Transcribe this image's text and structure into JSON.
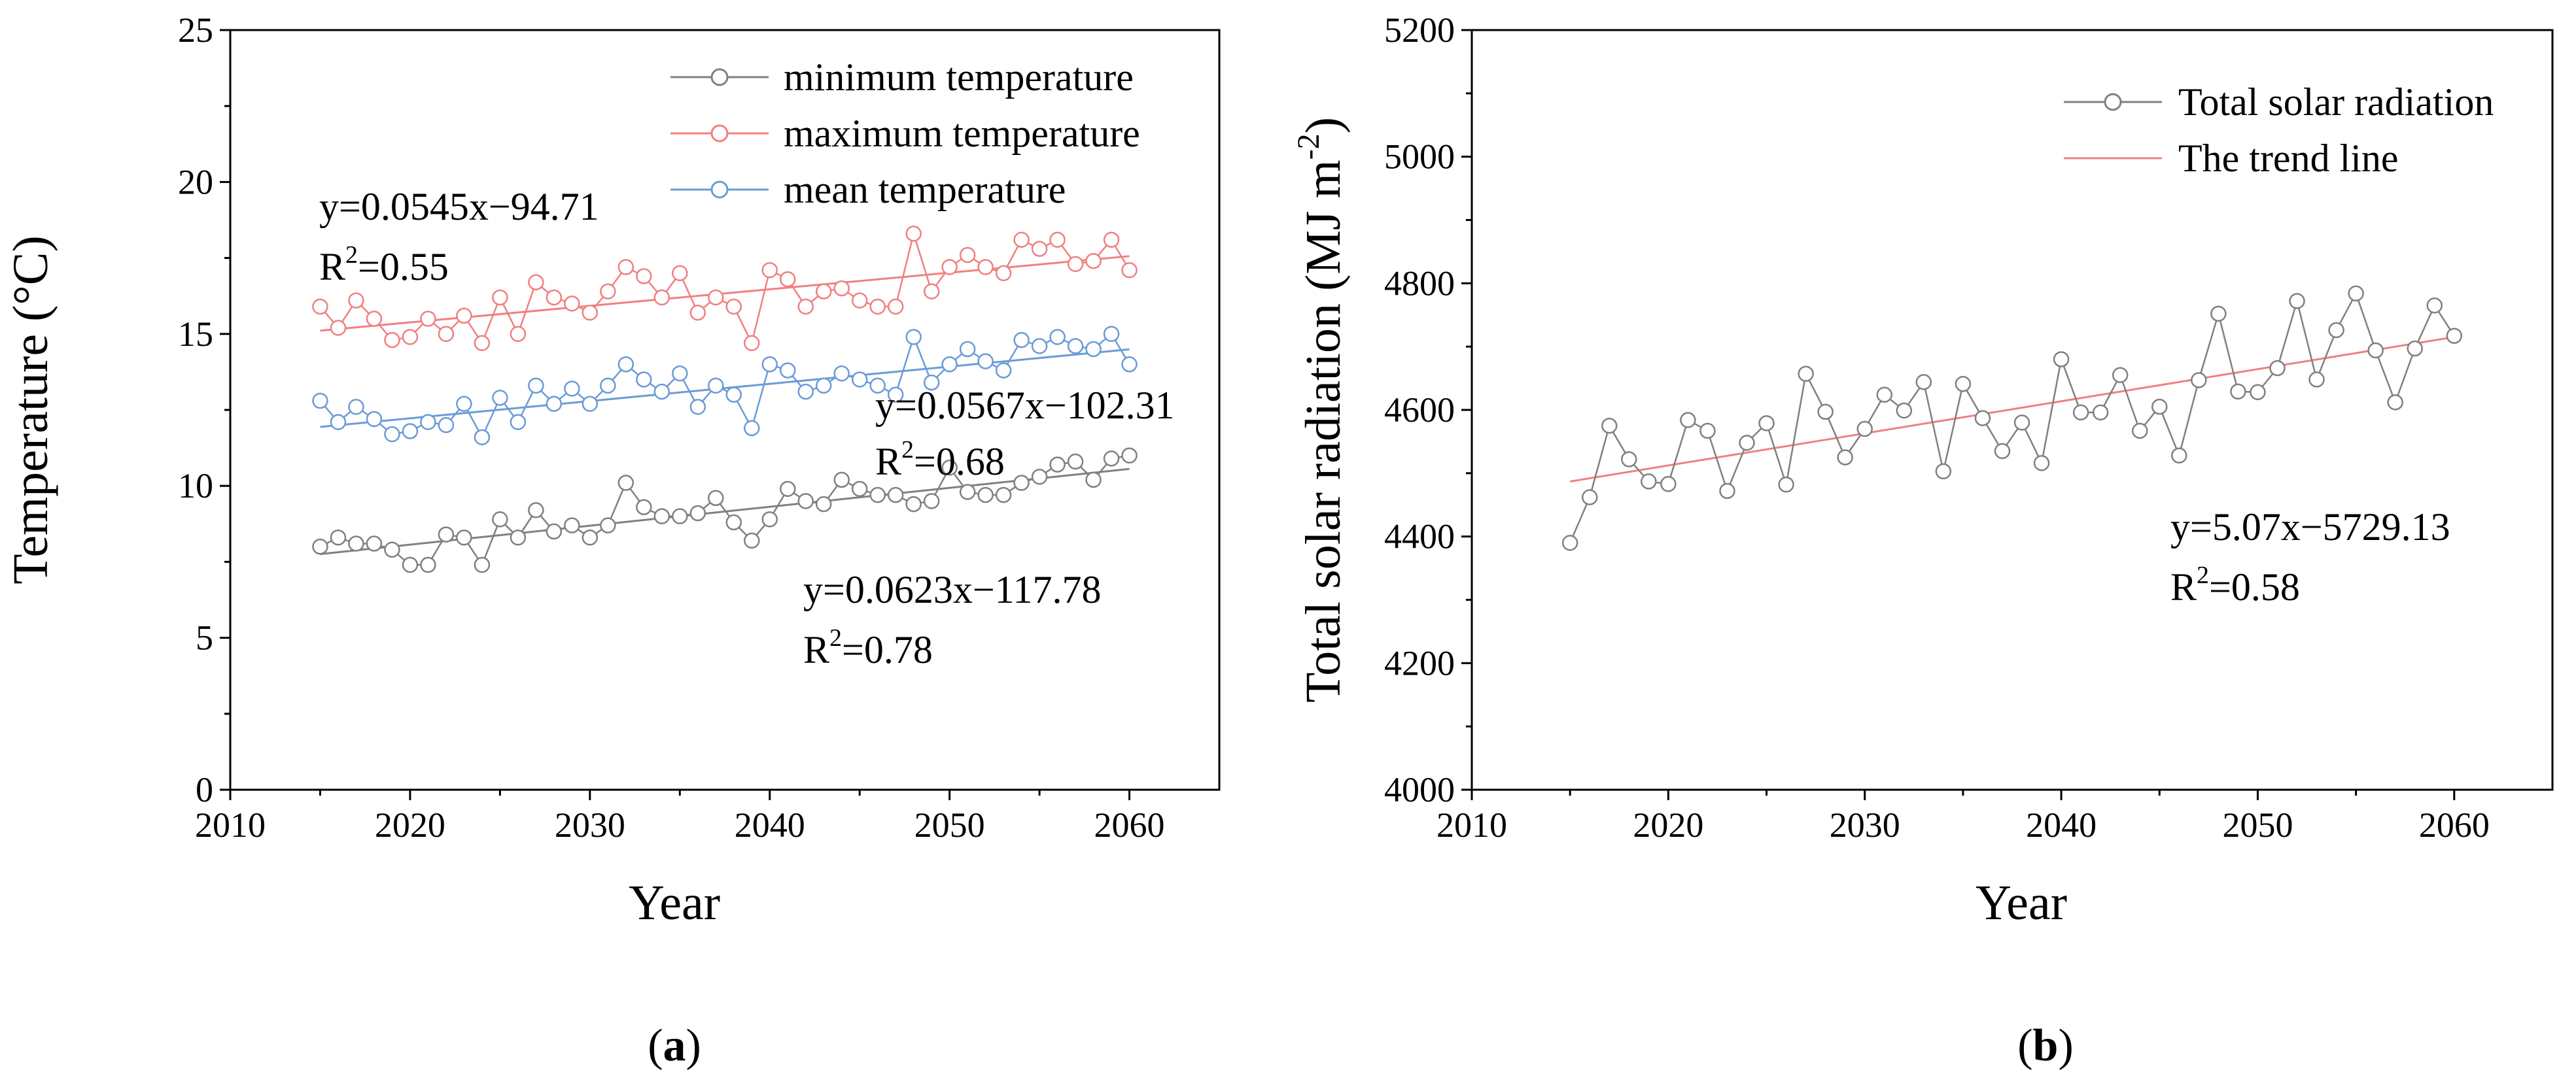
{
  "chart_data": [
    {
      "panel": "a",
      "panel_label": {
        "open": "(",
        "letter": "a",
        "close": ")"
      },
      "type": "line",
      "title": "",
      "xlabel": "Year",
      "ylabel": "Temperature (°C)",
      "xlim": [
        2010,
        2065
      ],
      "ylim": [
        0,
        25
      ],
      "xticks": [
        2010,
        2020,
        2030,
        2040,
        2050,
        2060
      ],
      "yticks": [
        0,
        5,
        10,
        15,
        20,
        25
      ],
      "grid": false,
      "legend_position": "top-right",
      "x": [
        2015,
        2016,
        2017,
        2018,
        2019,
        2020,
        2021,
        2022,
        2023,
        2024,
        2025,
        2026,
        2027,
        2028,
        2029,
        2030,
        2031,
        2032,
        2033,
        2034,
        2035,
        2036,
        2037,
        2038,
        2039,
        2040,
        2041,
        2042,
        2043,
        2044,
        2045,
        2046,
        2047,
        2048,
        2049,
        2050,
        2051,
        2052,
        2053,
        2054,
        2055,
        2056,
        2057,
        2058,
        2059,
        2060
      ],
      "series": [
        {
          "name": "minimum temperature",
          "color": "#808080",
          "values": [
            8.0,
            8.3,
            8.1,
            8.1,
            7.9,
            7.4,
            7.4,
            8.4,
            8.3,
            7.4,
            8.9,
            8.3,
            9.2,
            8.5,
            8.7,
            8.3,
            8.7,
            10.1,
            9.3,
            9.0,
            9.0,
            9.1,
            9.6,
            8.8,
            8.2,
            8.9,
            9.9,
            9.5,
            9.4,
            10.2,
            9.9,
            9.7,
            9.7,
            9.4,
            9.5,
            10.6,
            9.8,
            9.7,
            9.7,
            10.1,
            10.3,
            10.7,
            10.8,
            10.2,
            10.9,
            11.0
          ],
          "trend": {
            "slope": 0.0623,
            "intercept": -117.78,
            "equation": "y=0.0623x−117.78",
            "r2_prefix": "R",
            "r2_exp": "2",
            "r2_value": "=0.78"
          }
        },
        {
          "name": "maximum temperature",
          "color": "#f08080",
          "values": [
            15.9,
            15.2,
            16.1,
            15.5,
            14.8,
            14.9,
            15.5,
            15.0,
            15.6,
            14.7,
            16.2,
            15.0,
            16.7,
            16.2,
            16.0,
            15.7,
            16.4,
            17.2,
            16.9,
            16.2,
            17.0,
            15.7,
            16.2,
            15.9,
            14.7,
            17.1,
            16.8,
            15.9,
            16.4,
            16.5,
            16.1,
            15.9,
            15.9,
            18.3,
            16.4,
            17.2,
            17.6,
            17.2,
            17.0,
            18.1,
            17.8,
            18.1,
            17.3,
            17.4,
            18.1,
            17.1
          ],
          "trend": {
            "slope": 0.0545,
            "intercept": -94.71,
            "equation": "y=0.0545x−94.71",
            "r2_prefix": "R",
            "r2_exp": "2",
            "r2_value": "=0.55"
          }
        },
        {
          "name": "mean temperature",
          "color": "#6a9bd8",
          "values": [
            12.8,
            12.1,
            12.6,
            12.2,
            11.7,
            11.8,
            12.1,
            12.0,
            12.7,
            11.6,
            12.9,
            12.1,
            13.3,
            12.7,
            13.2,
            12.7,
            13.3,
            14.0,
            13.5,
            13.1,
            13.7,
            12.6,
            13.3,
            13.0,
            11.9,
            14.0,
            13.8,
            13.1,
            13.3,
            13.7,
            13.5,
            13.3,
            13.0,
            14.9,
            13.4,
            14.0,
            14.5,
            14.1,
            13.8,
            14.8,
            14.6,
            14.9,
            14.6,
            14.5,
            15.0,
            14.0
          ],
          "trend": {
            "slope": 0.0567,
            "intercept": -102.31,
            "equation": "y=0.0567x−102.31",
            "r2_prefix": "R",
            "r2_exp": "2",
            "r2_value": "=0.68"
          }
        }
      ]
    },
    {
      "panel": "b",
      "panel_label": {
        "open": "(",
        "letter": "b",
        "close": ")"
      },
      "type": "line",
      "title": "",
      "xlabel": "Year",
      "ylabel": "Total solar radiation (MJ m",
      "ylabel_sup": "-2",
      "ylabel_close": ")",
      "xlim": [
        2010,
        2065
      ],
      "ylim": [
        4000,
        5200
      ],
      "xticks": [
        2010,
        2020,
        2030,
        2040,
        2050,
        2060
      ],
      "yticks": [
        4000,
        4200,
        4400,
        4600,
        4800,
        5000,
        5200
      ],
      "grid": false,
      "legend_position": "top-right",
      "x": [
        2015,
        2016,
        2017,
        2018,
        2019,
        2020,
        2021,
        2022,
        2023,
        2024,
        2025,
        2026,
        2027,
        2028,
        2029,
        2030,
        2031,
        2032,
        2033,
        2034,
        2035,
        2036,
        2037,
        2038,
        2039,
        2040,
        2041,
        2042,
        2043,
        2044,
        2045,
        2046,
        2047,
        2048,
        2049,
        2050,
        2051,
        2052,
        2053,
        2054,
        2055,
        2056,
        2057,
        2058,
        2059,
        2060
      ],
      "series": [
        {
          "name": "Total solar radiation",
          "color": "#808080",
          "values": [
            4390,
            4462,
            4575,
            4522,
            4487,
            4483,
            4584,
            4567,
            4472,
            4548,
            4579,
            4482,
            4657,
            4597,
            4525,
            4570,
            4624,
            4599,
            4644,
            4503,
            4641,
            4587,
            4535,
            4580,
            4516,
            4680,
            4596,
            4596,
            4655,
            4567,
            4605,
            4528,
            4647,
            4752,
            4629,
            4628,
            4666,
            4772,
            4648,
            4726,
            4784,
            4694,
            4612,
            4697,
            4765,
            4717
          ],
          "trend": {
            "name": "The trend line",
            "color": "#f08080",
            "slope": 5.07,
            "intercept": -5729.13,
            "equation": "y=5.07x−5729.13",
            "r2_prefix": "R",
            "r2_exp": "2",
            "r2_value": "=0.58"
          }
        }
      ]
    }
  ]
}
